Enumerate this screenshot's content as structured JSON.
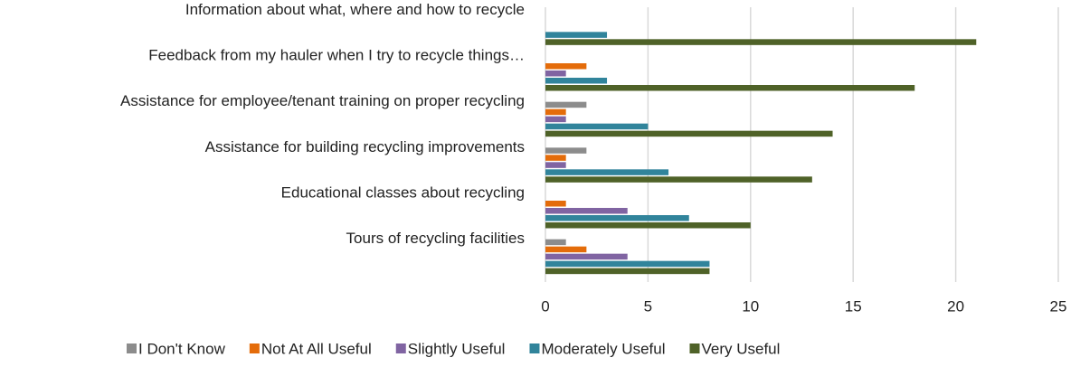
{
  "chart_data": {
    "type": "bar",
    "orientation": "horizontal",
    "categories": [
      "Information about what, where and how to recycle",
      "Feedback from my hauler when I try to recycle things…",
      "Assistance for employee/tenant training on proper recycling",
      "Assistance for building recycling improvements",
      "Educational classes about recycling",
      "Tours of recycling facilities"
    ],
    "series": [
      {
        "name": "I Don't Know",
        "color": "#8c8c8c",
        "values": [
          0,
          0,
          2,
          2,
          0,
          1
        ]
      },
      {
        "name": "Not At All Useful",
        "color": "#e46c0a",
        "values": [
          0,
          2,
          1,
          1,
          1,
          2
        ]
      },
      {
        "name": "Slightly Useful",
        "color": "#8064a2",
        "values": [
          0,
          1,
          1,
          1,
          4,
          4
        ]
      },
      {
        "name": "Moderately Useful",
        "color": "#31849b",
        "values": [
          3,
          3,
          5,
          6,
          7,
          8
        ]
      },
      {
        "name": "Very Useful",
        "color": "#4f6228",
        "values": [
          21,
          18,
          14,
          13,
          10,
          8
        ]
      }
    ],
    "xlim": [
      0,
      25
    ],
    "xticks": [
      0,
      5,
      10,
      15,
      20,
      25
    ],
    "grid": true,
    "legend": "bottom"
  }
}
